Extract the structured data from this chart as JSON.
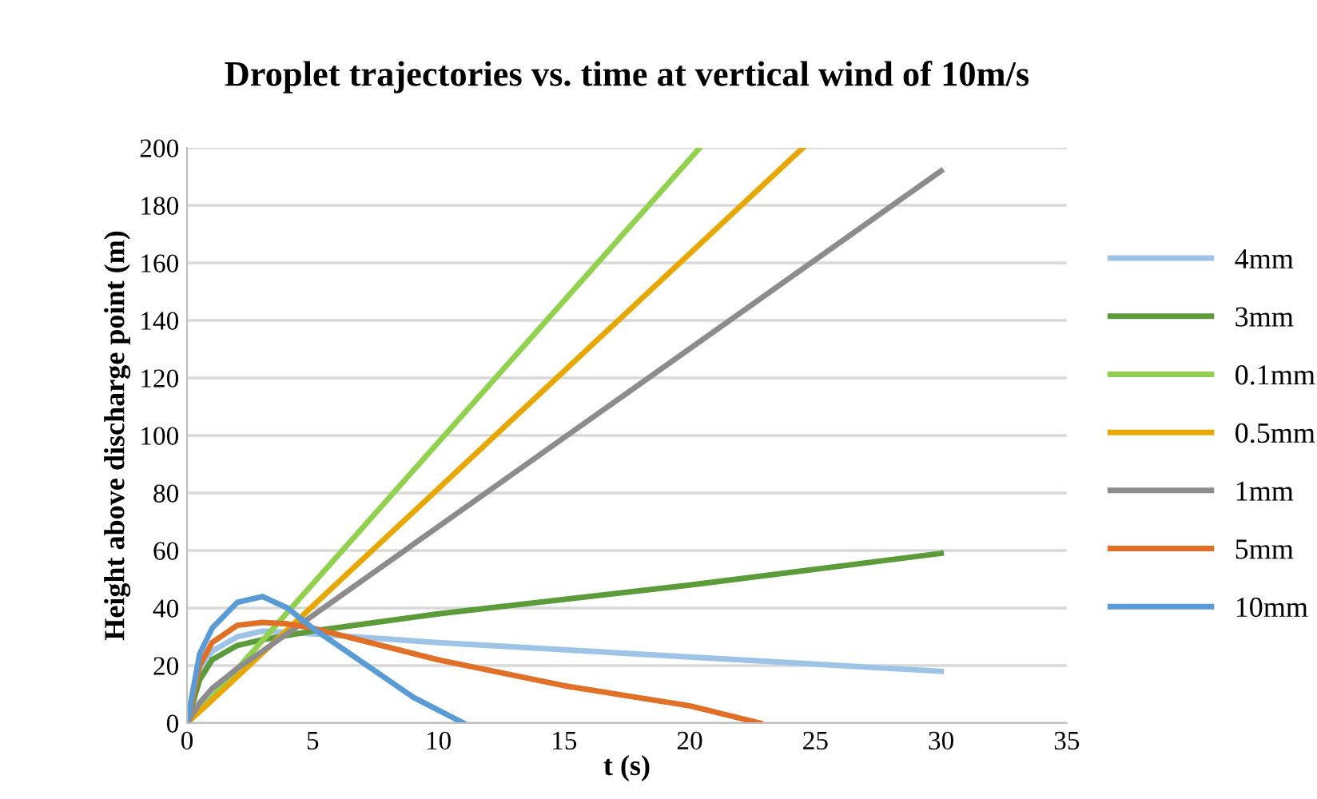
{
  "chart_data": {
    "type": "line",
    "title": "Droplet trajectories vs. time at vertical wind of 10m/s",
    "xlabel": "t (s)",
    "ylabel": "Height above discharge point (m)",
    "xlim": [
      0,
      35
    ],
    "xticks": [
      0,
      5,
      10,
      15,
      20,
      25,
      30,
      35
    ],
    "ylim": [
      0,
      200
    ],
    "yticks": [
      0,
      20,
      40,
      60,
      80,
      100,
      120,
      140,
      160,
      180,
      200
    ],
    "grid": "y",
    "legend": "right",
    "marker": "none",
    "line_style": "solid",
    "series": [
      {
        "name": "4mm",
        "color": "#9dc3e6",
        "x": [
          0,
          0.5,
          1,
          2,
          3,
          5,
          10,
          20,
          30
        ],
        "values": [
          0,
          18,
          25,
          30,
          32,
          31,
          28,
          23,
          18
        ]
      },
      {
        "name": "3mm",
        "color": "#5b9b3a",
        "x": [
          0,
          0.5,
          1,
          2,
          3,
          5,
          10,
          20,
          30
        ],
        "values": [
          0,
          15,
          22,
          27,
          29,
          32,
          38,
          48,
          59
        ]
      },
      {
        "name": "0.1mm",
        "color": "#92d050",
        "x": [
          0,
          1,
          20.4
        ],
        "values": [
          0,
          9,
          200
        ]
      },
      {
        "name": "0.5mm",
        "color": "#e6a800",
        "x": [
          0,
          1,
          24.5
        ],
        "values": [
          0,
          8,
          200
        ]
      },
      {
        "name": "1mm",
        "color": "#8c8c8c",
        "x": [
          0,
          0.5,
          1,
          2,
          3,
          30
        ],
        "values": [
          0,
          7,
          12,
          19,
          25,
          192
        ]
      },
      {
        "name": "5mm",
        "color": "#e07028",
        "x": [
          0,
          0.5,
          1,
          2,
          3,
          4,
          5,
          10,
          15,
          20,
          22.8
        ],
        "values": [
          0,
          20,
          28,
          34,
          35,
          34.5,
          33,
          22,
          13,
          6,
          0
        ]
      },
      {
        "name": "10mm",
        "color": "#5b9bd5",
        "x": [
          0,
          0.5,
          1,
          2,
          3,
          4,
          5,
          7,
          9,
          11
        ],
        "values": [
          0,
          24,
          33,
          42,
          44,
          40,
          33,
          21,
          9,
          0
        ]
      }
    ]
  }
}
